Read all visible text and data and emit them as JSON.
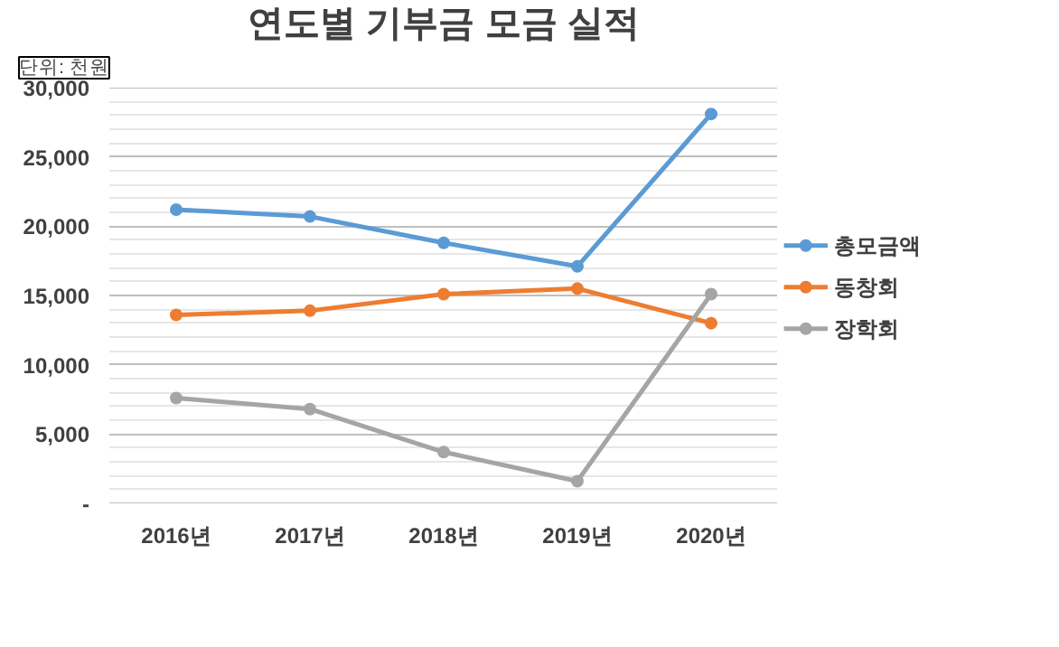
{
  "chart_data": {
    "type": "line",
    "title": "연도별 기부금 모금 실적",
    "annotations": [
      "단위: 천원"
    ],
    "categories": [
      "2016년",
      "2017년",
      "2018년",
      "2019년",
      "2020년"
    ],
    "series": [
      {
        "name": "총모금액",
        "color": "#5b9bd5",
        "values": [
          21200,
          20700,
          18800,
          17100,
          28100
        ]
      },
      {
        "name": "동창회",
        "color": "#ed7d31",
        "values": [
          13600,
          13900,
          15100,
          15500,
          13000
        ]
      },
      {
        "name": "장학회",
        "color": "#a5a5a5",
        "values": [
          7600,
          6800,
          3700,
          1600,
          15100
        ]
      }
    ],
    "ylim": [
      0,
      30000
    ],
    "yticks": [
      {
        "value": 0,
        "label": "-"
      },
      {
        "value": 5000,
        "label": "5,000"
      },
      {
        "value": 10000,
        "label": "10,000"
      },
      {
        "value": 15000,
        "label": "15,000"
      },
      {
        "value": 20000,
        "label": "20,000"
      },
      {
        "value": 25000,
        "label": "25,000"
      },
      {
        "value": 30000,
        "label": "30,000"
      }
    ],
    "grid": "y",
    "legend": "right",
    "marker": "circle",
    "line_style": "solid"
  }
}
